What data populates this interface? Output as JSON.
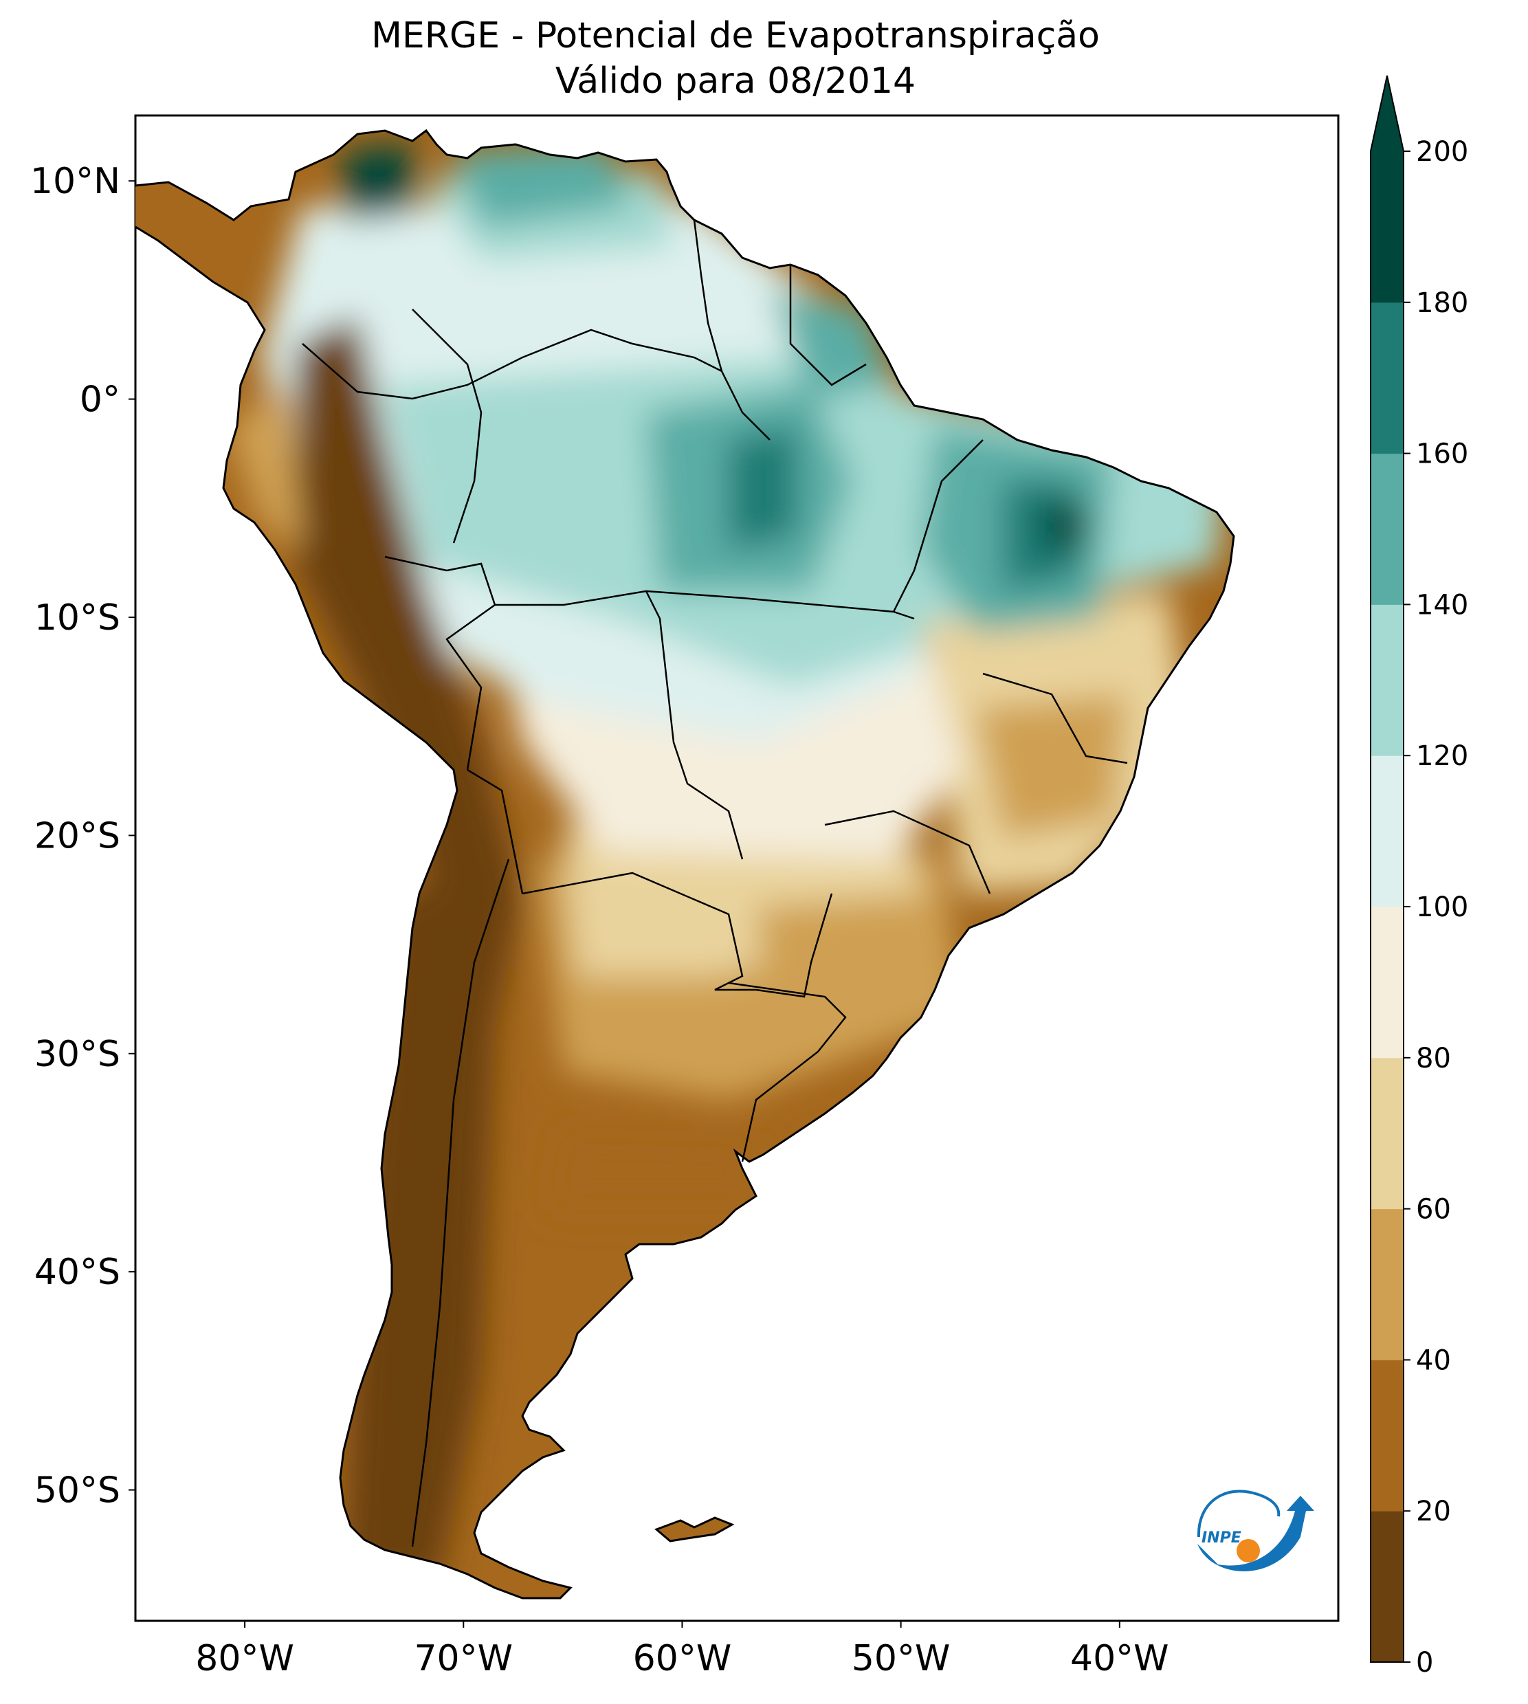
{
  "title": {
    "line1": "MERGE - Potencial de Evapotranspiração",
    "line2": "Válido para 08/2014"
  },
  "map": {
    "lon_range": [
      -85,
      -30
    ],
    "lat_range": [
      -56,
      13
    ],
    "lon_ticks": [
      {
        "value": -80,
        "label": "80°W"
      },
      {
        "value": -70,
        "label": "70°W"
      },
      {
        "value": -60,
        "label": "60°W"
      },
      {
        "value": -50,
        "label": "50°W"
      },
      {
        "value": -40,
        "label": "40°W"
      }
    ],
    "lat_ticks": [
      {
        "value": 10,
        "label": "10°N"
      },
      {
        "value": 0,
        "label": "0°"
      },
      {
        "value": -10,
        "label": "10°S"
      },
      {
        "value": -20,
        "label": "20°S"
      },
      {
        "value": -30,
        "label": "30°S"
      },
      {
        "value": -40,
        "label": "40°S"
      },
      {
        "value": -50,
        "label": "50°S"
      }
    ]
  },
  "colorbar": {
    "levels": [
      0,
      20,
      40,
      60,
      80,
      100,
      120,
      140,
      160,
      180,
      200
    ],
    "colors": [
      "#6b4110",
      "#a5681d",
      "#cfa052",
      "#e9d39c",
      "#f5eedd",
      "#def0ee",
      "#a4dad2",
      "#5aada5",
      "#1e7c74",
      "#00463a"
    ],
    "extend_color": "#00463a",
    "extend": "max"
  },
  "logo": {
    "text": "INPE",
    "colors": {
      "blue": "#1373b8",
      "orange": "#f08a1c"
    }
  }
}
